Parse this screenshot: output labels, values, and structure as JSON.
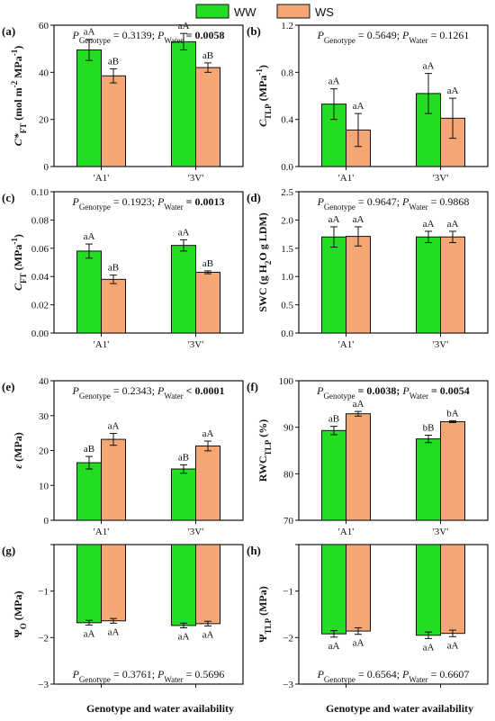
{
  "legend": [
    {
      "name": "WW",
      "color": "#22dd22"
    },
    {
      "name": "WS",
      "color": "#f4a673"
    }
  ],
  "x_title": "Genotype and water availability",
  "chart_data": [
    {
      "id": "(a)",
      "type": "bar",
      "ylabel_parts": [
        [
          "C*",
          "i"
        ],
        [
          "FT",
          "sub"
        ],
        [
          " (mol m",
          ""
        ],
        [
          "-2",
          "sup"
        ],
        [
          " MPa",
          ""
        ],
        [
          "-1",
          "sup"
        ],
        [
          ")",
          ""
        ]
      ],
      "categories": [
        "'A1'",
        "'3V'"
      ],
      "ylim": [
        0,
        60
      ],
      "yticks": [
        0,
        20,
        40,
        60
      ],
      "tick_labels": [
        "0",
        "20",
        "40",
        "60"
      ],
      "series": [
        {
          "name": "WW",
          "values": [
            49.5,
            53.0
          ],
          "err": [
            4.5,
            3.5
          ],
          "labels": [
            "aA",
            "aA"
          ]
        },
        {
          "name": "WS",
          "values": [
            38.5,
            42.0
          ],
          "err": [
            3.0,
            2.0
          ],
          "labels": [
            "aB",
            "aB"
          ]
        }
      ],
      "stats": {
        "p1_label": "P",
        "p1_sub": "Genotype",
        "p1_val": " = 0.3139; ",
        "p1_bold": false,
        "p2_label": "P",
        "p2_sub": "Water",
        "p2_val": " = 0.0058",
        "p2_bold": true
      },
      "stats_pos": "top"
    },
    {
      "id": "(b)",
      "type": "bar",
      "ylabel_parts": [
        [
          "C",
          "i"
        ],
        [
          "TLP",
          "sub"
        ],
        [
          " (MPa",
          ""
        ],
        [
          "-1",
          "sup"
        ],
        [
          ")",
          ""
        ]
      ],
      "categories": [
        "'A1'",
        "'3V'"
      ],
      "ylim": [
        0,
        1.2
      ],
      "yticks": [
        0,
        0.4,
        0.8,
        1.2
      ],
      "tick_labels": [
        "0.0",
        "0.4",
        "0.8",
        "1.2"
      ],
      "series": [
        {
          "name": "WW",
          "values": [
            0.53,
            0.62
          ],
          "err": [
            0.13,
            0.17
          ],
          "labels": [
            "aA",
            "aA"
          ]
        },
        {
          "name": "WS",
          "values": [
            0.31,
            0.41
          ],
          "err": [
            0.14,
            0.17
          ],
          "labels": [
            "aA",
            "aA"
          ]
        }
      ],
      "stats": {
        "p1_label": "P",
        "p1_sub": "Genotype",
        "p1_val": " = 0.5649; ",
        "p1_bold": false,
        "p2_label": "P",
        "p2_sub": "Water",
        "p2_val": " = 0.1261",
        "p2_bold": false
      },
      "stats_pos": "top"
    },
    {
      "id": "(c)",
      "type": "bar",
      "ylabel_parts": [
        [
          "C",
          "i"
        ],
        [
          "FT",
          "sub"
        ],
        [
          " (MPa",
          ""
        ],
        [
          "-1",
          "sup"
        ],
        [
          ")",
          ""
        ]
      ],
      "categories": [
        "'A1'",
        "'3V'"
      ],
      "ylim": [
        0,
        0.1
      ],
      "yticks": [
        0,
        0.02,
        0.04,
        0.06,
        0.08,
        0.1
      ],
      "tick_labels": [
        "0.00",
        "0.02",
        "0.04",
        "0.06",
        "0.08",
        "0.10"
      ],
      "series": [
        {
          "name": "WW",
          "values": [
            0.058,
            0.062
          ],
          "err": [
            0.005,
            0.004
          ],
          "labels": [
            "aA",
            "aA"
          ]
        },
        {
          "name": "WS",
          "values": [
            0.038,
            0.043
          ],
          "err": [
            0.003,
            0.001
          ],
          "labels": [
            "aB",
            "aB"
          ]
        }
      ],
      "stats": {
        "p1_label": "P",
        "p1_sub": "Genotype",
        "p1_val": " = 0.1923; ",
        "p1_bold": false,
        "p2_label": "P",
        "p2_sub": "Water",
        "p2_val": " = 0.0013",
        "p2_bold": true
      },
      "stats_pos": "top"
    },
    {
      "id": "(d)",
      "type": "bar",
      "ylabel_parts": [
        [
          "SWC (g H",
          ""
        ],
        [
          "2",
          "sub"
        ],
        [
          "O g LDM)",
          ""
        ]
      ],
      "categories": [
        "'A1'",
        "'3V'"
      ],
      "ylim": [
        0,
        2.5
      ],
      "yticks": [
        0,
        0.5,
        1.0,
        1.5,
        2.0,
        2.5
      ],
      "tick_labels": [
        "0.0",
        "0.5",
        "1.0",
        "1.5",
        "2.0",
        "2.5"
      ],
      "series": [
        {
          "name": "WW",
          "values": [
            1.7,
            1.7
          ],
          "err": [
            0.18,
            0.1
          ],
          "labels": [
            "aA",
            "aA"
          ]
        },
        {
          "name": "WS",
          "values": [
            1.71,
            1.7
          ],
          "err": [
            0.17,
            0.1
          ],
          "labels": [
            "aA",
            "aA"
          ]
        }
      ],
      "stats": {
        "p1_label": "P",
        "p1_sub": "Genotype",
        "p1_val": " = 0.9647; ",
        "p1_bold": false,
        "p2_label": "P",
        "p2_sub": "Water",
        "p2_val": " = 0.9868",
        "p2_bold": false
      },
      "stats_pos": "top"
    },
    {
      "id": "(e)",
      "type": "bar",
      "ylabel_parts": [
        [
          "ε",
          "i"
        ],
        [
          " (MPa)",
          ""
        ]
      ],
      "categories": [
        "'A1'",
        "'3V'"
      ],
      "ylim": [
        0,
        40
      ],
      "yticks": [
        0,
        10,
        20,
        30,
        40
      ],
      "tick_labels": [
        "0",
        "10",
        "20",
        "30",
        "40"
      ],
      "series": [
        {
          "name": "WW",
          "values": [
            16.5,
            14.7
          ],
          "err": [
            1.8,
            1.2
          ],
          "labels": [
            "aB",
            "aB"
          ]
        },
        {
          "name": "WS",
          "values": [
            23.2,
            21.3
          ],
          "err": [
            1.7,
            1.4
          ],
          "labels": [
            "aA",
            "aA"
          ]
        }
      ],
      "stats": {
        "p1_label": "P",
        "p1_sub": "Genotype",
        "p1_val": " = 0.2343; ",
        "p1_bold": false,
        "p2_label": "P",
        "p2_sub": "Water",
        "p2_val": " < 0.0001",
        "p2_bold": true
      },
      "stats_pos": "top"
    },
    {
      "id": "(f)",
      "type": "bar",
      "ylabel_parts": [
        [
          "RWC",
          ""
        ],
        [
          "TLP",
          "sub"
        ],
        [
          " (%)",
          ""
        ]
      ],
      "categories": [
        "'A1'",
        "'3V'"
      ],
      "ylim": [
        70,
        100
      ],
      "yticks": [
        70,
        80,
        90,
        100
      ],
      "tick_labels": [
        "70",
        "80",
        "90",
        "100"
      ],
      "series": [
        {
          "name": "WW",
          "values": [
            89.3,
            87.5
          ],
          "err": [
            0.9,
            0.8
          ],
          "labels": [
            "aB",
            "bB"
          ]
        },
        {
          "name": "WS",
          "values": [
            92.9,
            91.2
          ],
          "err": [
            0.5,
            0.2
          ],
          "labels": [
            "aA",
            "bA"
          ]
        }
      ],
      "stats": {
        "p1_label": "P",
        "p1_sub": "Genotype",
        "p1_val": " = 0.0038; ",
        "p1_bold": true,
        "p2_label": "P",
        "p2_sub": "Water",
        "p2_val": " = 0.0054",
        "p2_bold": true
      },
      "stats_pos": "top"
    },
    {
      "id": "(g)",
      "type": "bar",
      "ylabel_parts": [
        [
          "Ψ",
          ""
        ],
        [
          "O",
          "sub"
        ],
        [
          " (MPa)",
          ""
        ]
      ],
      "categories": [
        "",
        ""
      ],
      "ylim": [
        -3,
        0
      ],
      "yticks": [
        -3,
        -2,
        -1,
        0
      ],
      "tick_labels": [
        "−3",
        "−2",
        "−1",
        ""
      ],
      "series": [
        {
          "name": "WW",
          "values": [
            -1.68,
            -1.74
          ],
          "err": [
            0.05,
            0.05
          ],
          "labels": [
            "aA",
            "aA"
          ]
        },
        {
          "name": "WS",
          "values": [
            -1.64,
            -1.7
          ],
          "err": [
            0.05,
            0.05
          ],
          "labels": [
            "aA",
            "aA"
          ]
        }
      ],
      "stats": {
        "p1_label": "P",
        "p1_sub": "Genotype",
        "p1_val": " = 0.3761; ",
        "p1_bold": false,
        "p2_label": "P",
        "p2_sub": "Water",
        "p2_val": " = 0.5696",
        "p2_bold": false
      },
      "stats_pos": "bottom"
    },
    {
      "id": "(h)",
      "type": "bar",
      "ylabel_parts": [
        [
          "Ψ",
          ""
        ],
        [
          "TLP",
          "sub"
        ],
        [
          " (MPa)",
          ""
        ]
      ],
      "categories": [
        "",
        ""
      ],
      "ylim": [
        -3,
        0
      ],
      "yticks": [
        -3,
        -2,
        -1,
        0
      ],
      "tick_labels": [
        "−3",
        "−2",
        "−1",
        ""
      ],
      "series": [
        {
          "name": "WW",
          "values": [
            -1.92,
            -1.95
          ],
          "err": [
            0.07,
            0.07
          ],
          "labels": [
            "aA",
            "aA"
          ]
        },
        {
          "name": "WS",
          "values": [
            -1.86,
            -1.91
          ],
          "err": [
            0.07,
            0.07
          ],
          "labels": [
            "aA",
            "aA"
          ]
        }
      ],
      "stats": {
        "p1_label": "P",
        "p1_sub": "Genotype",
        "p1_val": " = 0.6564; ",
        "p1_bold": false,
        "p2_label": "P",
        "p2_sub": "Water",
        "p2_val": " = 0.6607",
        "p2_bold": false
      },
      "stats_pos": "bottom"
    }
  ]
}
